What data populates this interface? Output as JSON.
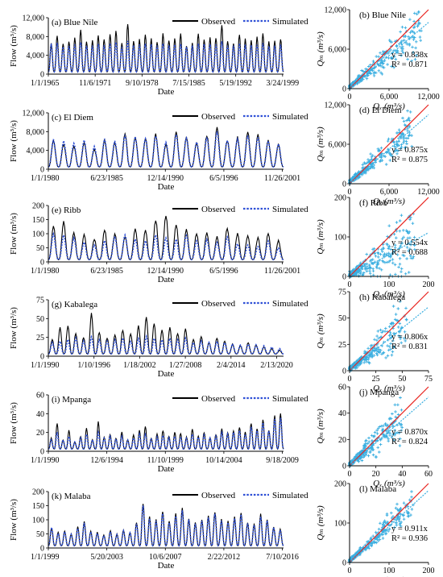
{
  "chart_data": [
    {
      "id": "a",
      "type": "line",
      "title": "(a) Blue Nile",
      "xlabel": "Date",
      "ylabel": "Flow (m³/s)",
      "yticks": [
        "0",
        "4,000",
        "8,000",
        "12,000"
      ],
      "ylim": [
        0,
        12000
      ],
      "xticks": [
        "1/1/1965",
        "11/6/1971",
        "9/10/1978",
        "7/15/1985",
        "5/19/1992",
        "3/24/1999"
      ],
      "cycles": 40,
      "legend": [
        "Observed",
        "Simulated"
      ],
      "series": [
        {
          "name": "Observed",
          "peaks": [
            6500,
            8300,
            6500,
            6900,
            7600,
            9500,
            7000,
            7200,
            8200,
            7400,
            8600,
            9300,
            6600,
            10800,
            7000,
            7300,
            8300,
            7400,
            6800,
            8700,
            7200,
            7400,
            8400,
            6100,
            6500,
            8500,
            7400,
            7700,
            7800,
            10600,
            7000,
            6700,
            8300,
            7500,
            7000,
            7800,
            8800,
            6900,
            7100,
            7600
          ]
        },
        {
          "name": "Simulated",
          "peaks": [
            6400,
            6600,
            5800,
            6000,
            6300,
            6800,
            6000,
            6100,
            6500,
            6100,
            6600,
            6800,
            5900,
            7000,
            6100,
            6200,
            6500,
            6300,
            6000,
            6600,
            6100,
            6200,
            6400,
            5800,
            6000,
            6500,
            6300,
            6400,
            6400,
            6900,
            6100,
            6000,
            6500,
            6200,
            6100,
            6300,
            6600,
            6000,
            6100,
            6200
          ]
        }
      ]
    },
    {
      "id": "b",
      "type": "scatter",
      "title": "(b) Blue Nile",
      "xlabel": "Qₓ (m³/s)",
      "ylabel": "Qₘ (m³/s)",
      "ticks": [
        "0",
        "6,000",
        "12,000"
      ],
      "lim": [
        0,
        12000
      ],
      "slope": 0.838,
      "r2": 0.871,
      "equation": "y = 0.838x",
      "r2_label": "R² = 0.871",
      "spread": 0.18,
      "xmax_points": 11000
    },
    {
      "id": "c",
      "type": "line",
      "title": "(c) El Diem",
      "xlabel": "Date",
      "ylabel": "Flow (m³/s)",
      "yticks": [
        "0",
        "4,000",
        "8,000",
        "12,000"
      ],
      "ylim": [
        0,
        12000
      ],
      "xticks": [
        "1/1/1980",
        "6/23/1985",
        "12/14/1990",
        "6/5/1996",
        "11/26/2001"
      ],
      "cycles": 23,
      "legend": [
        "Observed",
        "Simulated"
      ],
      "series": [
        {
          "name": "Observed",
          "peaks": [
            6000,
            5300,
            5000,
            5700,
            4300,
            6100,
            5600,
            7600,
            6800,
            6500,
            7400,
            5300,
            7900,
            6900,
            5600,
            7200,
            9200,
            6100,
            6800,
            8000,
            7300,
            6200,
            5200
          ]
        },
        {
          "name": "Simulated",
          "peaks": [
            6300,
            6000,
            5500,
            6200,
            4800,
            6400,
            6000,
            7200,
            6800,
            6500,
            7100,
            5700,
            7400,
            6600,
            5800,
            6700,
            8100,
            6200,
            6400,
            7200,
            6800,
            6000,
            5400
          ]
        }
      ]
    },
    {
      "id": "d",
      "type": "scatter",
      "title": "(d) El Diem",
      "xlabel": "Qₓ (m³/s)",
      "ylabel": "Qₘ (m³/s)",
      "ticks": [
        "0",
        "6,000",
        "12,000"
      ],
      "lim": [
        0,
        12000
      ],
      "slope": 0.875,
      "r2": 0.875,
      "equation": "y = 0.875x",
      "r2_label": "R² = 0.875",
      "spread": 0.17,
      "xmax_points": 9500
    },
    {
      "id": "e",
      "type": "line",
      "title": "(e) Ribb",
      "xlabel": "Date",
      "ylabel": "Flow (m³/s)",
      "yticks": [
        "0",
        "50",
        "100",
        "150",
        "200"
      ],
      "ylim": [
        0,
        200
      ],
      "xticks": [
        "1/1/1980",
        "6/23/1985",
        "12/14/1990",
        "6/5/1996",
        "11/26/2001"
      ],
      "cycles": 23,
      "legend": [
        "Observed",
        "Simulated"
      ],
      "series": [
        {
          "name": "Observed",
          "peaks": [
            130,
            145,
            105,
            95,
            80,
            115,
            100,
            90,
            120,
            110,
            150,
            165,
            130,
            115,
            100,
            105,
            90,
            120,
            100,
            95,
            85,
            100,
            75
          ]
        },
        {
          "name": "Simulated",
          "peaks": [
            100,
            95,
            85,
            70,
            60,
            75,
            90,
            95,
            80,
            75,
            95,
            85,
            80,
            95,
            75,
            80,
            70,
            90,
            65,
            60,
            55,
            75,
            50
          ]
        }
      ]
    },
    {
      "id": "f",
      "type": "scatter",
      "title": "(f) Ribb",
      "xlabel": "Qₓ (m³/s)",
      "ylabel": "Qₘ (m³/s)",
      "ticks": [
        "0",
        "100",
        "200"
      ],
      "lim": [
        0,
        200
      ],
      "slope": 0.554,
      "r2": 0.688,
      "equation": "y = 0.554x",
      "r2_label": "R² = 0.688",
      "spread": 0.35,
      "xmax_points": 165
    },
    {
      "id": "g",
      "type": "line",
      "title": "(g) Kabalega",
      "xlabel": "Date",
      "ylabel": "Flow (m³/s)",
      "yticks": [
        "0",
        "25",
        "50",
        "75"
      ],
      "ylim": [
        0,
        75
      ],
      "xticks": [
        "1/1/1990",
        "1/10/1996",
        "1/18/2002",
        "1/27/2008",
        "2/4/2014",
        "2/13/2020"
      ],
      "cycles": 30,
      "legend": [
        "Observed",
        "Simulated"
      ],
      "series": [
        {
          "name": "Observed",
          "peaks": [
            22,
            38,
            41,
            30,
            25,
            58,
            32,
            24,
            28,
            35,
            30,
            40,
            52,
            44,
            34,
            38,
            30,
            36,
            22,
            26,
            18,
            24,
            20,
            16,
            14,
            18,
            15,
            12,
            10,
            8
          ]
        },
        {
          "name": "Simulated",
          "peaks": [
            18,
            20,
            22,
            24,
            20,
            26,
            22,
            20,
            22,
            24,
            20,
            24,
            26,
            24,
            22,
            24,
            22,
            24,
            18,
            20,
            18,
            20,
            18,
            16,
            15,
            16,
            15,
            14,
            12,
            10
          ]
        }
      ]
    },
    {
      "id": "h",
      "type": "scatter",
      "title": "(h) Kabalega",
      "xlabel": "Qₓ (m³/s)",
      "ylabel": "Qₘ (m³/s)",
      "ticks": [
        "0",
        "25",
        "50",
        "75"
      ],
      "lim": [
        0,
        75
      ],
      "slope": 0.806,
      "r2": 0.831,
      "equation": "y = 0.806x",
      "r2_label": "R² = 0.831",
      "spread": 0.22,
      "xmax_points": 55
    },
    {
      "id": "i",
      "type": "line",
      "title": "(i) Mpanga",
      "xlabel": "Date",
      "ylabel": "Flow (m³/s)",
      "yticks": [
        "0",
        "20",
        "40",
        "60"
      ],
      "ylim": [
        0,
        60
      ],
      "xticks": [
        "1/1/1990",
        "12/6/1994",
        "11/10/1999",
        "10/14/2004",
        "9/18/2009"
      ],
      "cycles": 40,
      "legend": [
        "Observed",
        "Simulated"
      ],
      "series": [
        {
          "name": "Observed",
          "peaks": [
            14,
            30,
            12,
            22,
            10,
            16,
            24,
            12,
            31,
            15,
            18,
            14,
            20,
            12,
            17,
            22,
            26,
            14,
            18,
            22,
            16,
            20,
            19,
            15,
            24,
            16,
            20,
            14,
            18,
            24,
            20,
            22,
            26,
            20,
            30,
            24,
            34,
            22,
            38,
            40
          ]
        },
        {
          "name": "Simulated",
          "peaks": [
            12,
            20,
            12,
            16,
            10,
            14,
            18,
            12,
            20,
            14,
            16,
            13,
            16,
            12,
            14,
            18,
            18,
            13,
            15,
            17,
            14,
            16,
            15,
            14,
            18,
            15,
            17,
            14,
            16,
            20,
            18,
            20,
            22,
            18,
            26,
            22,
            30,
            22,
            34,
            36
          ]
        }
      ]
    },
    {
      "id": "j",
      "type": "scatter",
      "title": "(j) Mpanga",
      "xlabel": "Qₓ (m³/s)",
      "ylabel": "Qₘ (m³/s)",
      "ticks": [
        "0",
        "20",
        "40",
        "60"
      ],
      "lim": [
        0,
        60
      ],
      "slope": 0.87,
      "r2": 0.824,
      "equation": "y = 0.870x",
      "r2_label": "R² = 0.824",
      "spread": 0.24,
      "xmax_points": 40
    },
    {
      "id": "k",
      "type": "line",
      "title": "(k) Malaba",
      "xlabel": "Date",
      "ylabel": "Flow (m³/s)",
      "yticks": [
        "0",
        "50",
        "100",
        "150",
        "200"
      ],
      "ylim": [
        0,
        200
      ],
      "xticks": [
        "1/1/1999",
        "5/20/2003",
        "10/6/2007",
        "2/22/2012",
        "7/10/2016"
      ],
      "cycles": 36,
      "legend": [
        "Observed",
        "Simulated"
      ],
      "series": [
        {
          "name": "Observed",
          "peaks": [
            70,
            55,
            60,
            50,
            75,
            95,
            60,
            55,
            45,
            60,
            50,
            65,
            55,
            90,
            160,
            110,
            100,
            130,
            95,
            120,
            140,
            105,
            90,
            100,
            115,
            130,
            100,
            95,
            110,
            125,
            90,
            85,
            120,
            100,
            75,
            65
          ]
        },
        {
          "name": "Simulated",
          "peaks": [
            72,
            52,
            58,
            48,
            70,
            88,
            58,
            52,
            44,
            58,
            48,
            62,
            54,
            86,
            150,
            104,
            96,
            122,
            90,
            112,
            132,
            100,
            86,
            96,
            108,
            122,
            96,
            90,
            104,
            118,
            86,
            80,
            112,
            96,
            72,
            62
          ]
        }
      ]
    },
    {
      "id": "l",
      "type": "scatter",
      "title": "(l) Malaba",
      "xlabel": "Qₓ (m³/s)",
      "ylabel": "Qₘ (m³/s)",
      "ticks": [
        "0",
        "100",
        "200"
      ],
      "lim": [
        0,
        200
      ],
      "slope": 0.911,
      "r2": 0.936,
      "equation": "y = 0.911x",
      "r2_label": "R² = 0.936",
      "spread": 0.12,
      "xmax_points": 165
    }
  ],
  "colors": {
    "observed": "#000000",
    "simulated": "#2e4fd6",
    "scatter_points": "#3aaee0",
    "one_to_one": "#e8231e",
    "fit_line": "#3aaee0"
  }
}
